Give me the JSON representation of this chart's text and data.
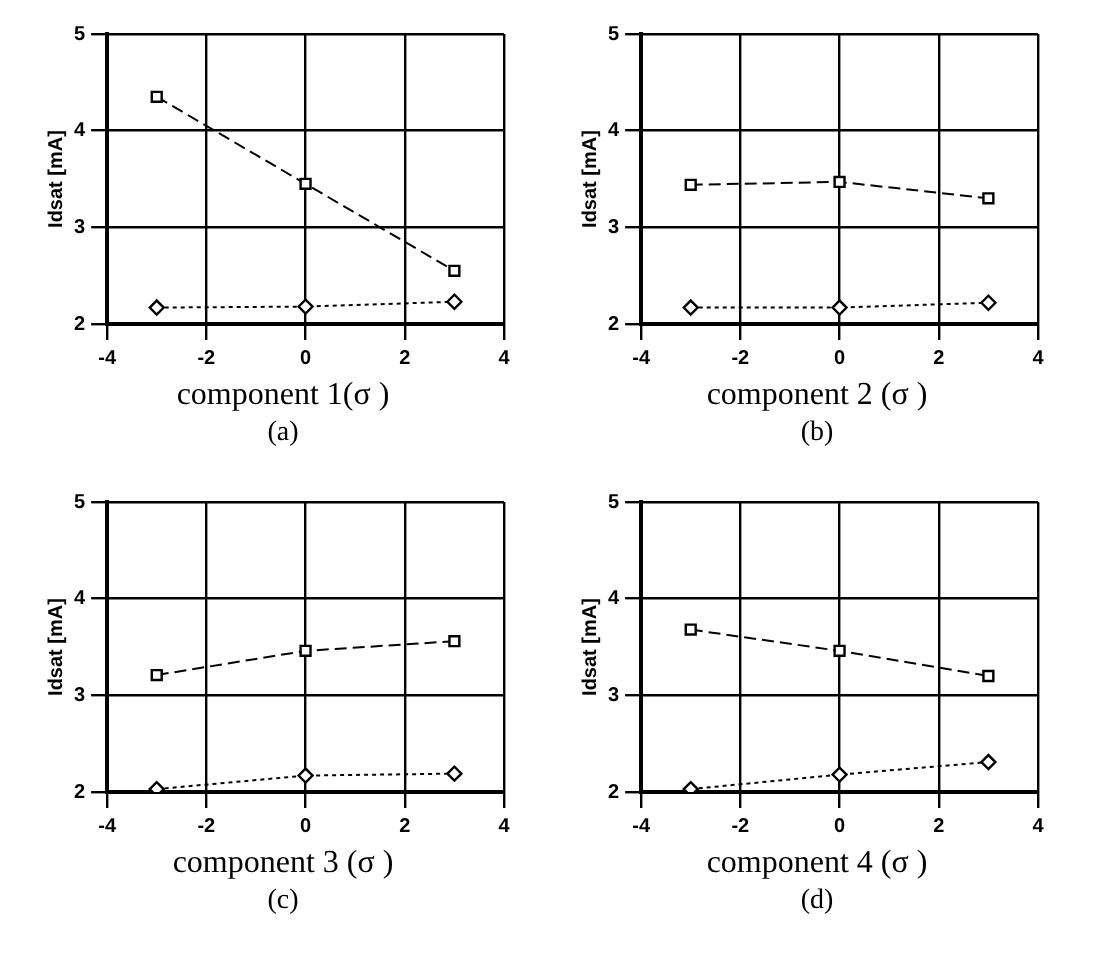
{
  "chart_data": [
    {
      "type": "line",
      "xlabel": "component 1(σ )",
      "ylabel": "Idsat [mA]",
      "annotations": [
        "(a)"
      ],
      "xlim": [
        -4,
        4
      ],
      "xticks": [
        -4,
        -2,
        0,
        2,
        4
      ],
      "ylim": [
        2,
        5
      ],
      "yticks": [
        2,
        3,
        4,
        5
      ],
      "grid": true,
      "legend": false,
      "x": [
        -3,
        0,
        3
      ],
      "series": [
        {
          "color": "#000000",
          "marker": "square",
          "line_style": "dashed",
          "values": [
            4.35,
            3.45,
            2.55
          ]
        },
        {
          "color": "#000000",
          "marker": "diamond",
          "line_style": "dotted",
          "values": [
            2.17,
            2.18,
            2.23
          ]
        }
      ]
    },
    {
      "type": "line",
      "xlabel": "component 2 (σ )",
      "ylabel": "Idsat [mA]",
      "annotations": [
        "(b)"
      ],
      "xlim": [
        -4,
        4
      ],
      "xticks": [
        -4,
        -2,
        0,
        2,
        4
      ],
      "ylim": [
        2,
        5
      ],
      "yticks": [
        2,
        3,
        4,
        5
      ],
      "grid": true,
      "legend": false,
      "x": [
        -3,
        0,
        3
      ],
      "series": [
        {
          "color": "#000000",
          "marker": "square",
          "line_style": "dashed",
          "values": [
            3.44,
            3.47,
            3.3
          ]
        },
        {
          "color": "#000000",
          "marker": "diamond",
          "line_style": "dotted",
          "values": [
            2.17,
            2.17,
            2.22
          ]
        }
      ]
    },
    {
      "type": "line",
      "xlabel": "component 3 (σ )",
      "ylabel": "Idsat [mA]",
      "annotations": [
        "(c)"
      ],
      "xlim": [
        -4,
        4
      ],
      "xticks": [
        -4,
        -2,
        0,
        2,
        4
      ],
      "ylim": [
        2,
        5
      ],
      "yticks": [
        2,
        3,
        4,
        5
      ],
      "grid": true,
      "legend": false,
      "x": [
        -3,
        0,
        3
      ],
      "series": [
        {
          "color": "#000000",
          "marker": "square",
          "line_style": "dashed",
          "values": [
            3.21,
            3.46,
            3.56
          ]
        },
        {
          "color": "#000000",
          "marker": "diamond",
          "line_style": "dotted",
          "values": [
            2.03,
            2.17,
            2.19
          ]
        }
      ]
    },
    {
      "type": "line",
      "xlabel": "component 4 (σ )",
      "ylabel": "Idsat [mA]",
      "annotations": [
        "(d)"
      ],
      "xlim": [
        -4,
        4
      ],
      "xticks": [
        -4,
        -2,
        0,
        2,
        4
      ],
      "ylim": [
        2,
        5
      ],
      "yticks": [
        2,
        3,
        4,
        5
      ],
      "grid": true,
      "legend": false,
      "x": [
        -3,
        0,
        3
      ],
      "series": [
        {
          "color": "#000000",
          "marker": "square",
          "line_style": "dashed",
          "values": [
            3.68,
            3.46,
            3.2
          ]
        },
        {
          "color": "#000000",
          "marker": "diamond",
          "line_style": "dotted",
          "values": [
            2.03,
            2.18,
            2.31
          ]
        }
      ]
    }
  ]
}
